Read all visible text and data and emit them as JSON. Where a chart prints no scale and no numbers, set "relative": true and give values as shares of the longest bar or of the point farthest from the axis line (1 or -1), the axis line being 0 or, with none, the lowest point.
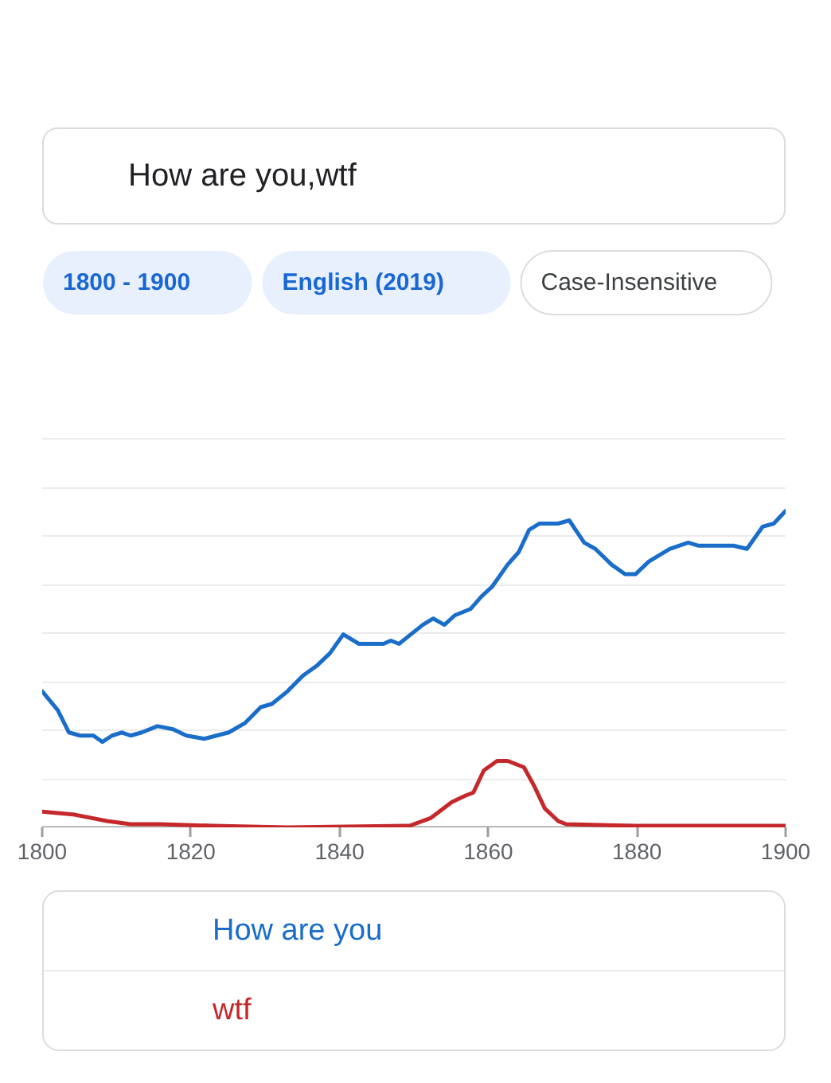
{
  "chart_data": {
    "type": "line",
    "title": "How are you,wtf",
    "annotations": [
      "1800 - 1900",
      "English (2019)",
      "Case-Insensitive"
    ],
    "relative": true,
    "xlim": [
      1800,
      1900
    ],
    "xticks": [
      1800,
      1820,
      1840,
      1860,
      1880,
      1900
    ],
    "grid": "y",
    "legend": "bottom",
    "tick_labels": "x",
    "series": [
      {
        "name": "How are you",
        "color": "#1a6dc9",
        "x": [
          1800,
          1802.1,
          1803.6,
          1805.1,
          1806.9,
          1808.1,
          1809.4,
          1810.7,
          1811.9,
          1813.4,
          1815.5,
          1817.6,
          1819.4,
          1821.8,
          1825.1,
          1827.3,
          1829.4,
          1830.9,
          1833,
          1835.1,
          1836.9,
          1838.7,
          1840.5,
          1842.6,
          1845.9,
          1846.9,
          1848,
          1851.2,
          1852.6,
          1854.1,
          1855.5,
          1857.6,
          1859.1,
          1860.5,
          1862.6,
          1864.1,
          1865.5,
          1866.9,
          1869.4,
          1870.9,
          1872.9,
          1874.4,
          1876.6,
          1878.4,
          1879.8,
          1881.6,
          1884.4,
          1886.9,
          1888.3,
          1891.2,
          1893,
          1894.8,
          1896.9,
          1898.4,
          1900
        ],
        "values": [
          0.43,
          0.37,
          0.3,
          0.29,
          0.29,
          0.27,
          0.29,
          0.3,
          0.29,
          0.3,
          0.32,
          0.31,
          0.29,
          0.28,
          0.3,
          0.33,
          0.38,
          0.39,
          0.43,
          0.48,
          0.51,
          0.55,
          0.61,
          0.58,
          0.58,
          0.59,
          0.58,
          0.64,
          0.66,
          0.64,
          0.67,
          0.69,
          0.73,
          0.76,
          0.83,
          0.87,
          0.94,
          0.96,
          0.96,
          0.97,
          0.9,
          0.88,
          0.83,
          0.8,
          0.8,
          0.84,
          0.88,
          0.9,
          0.89,
          0.89,
          0.89,
          0.88,
          0.95,
          0.96,
          1
        ]
      },
      {
        "name": "wtf",
        "color": "#c5282a",
        "x": [
          1800,
          1804.4,
          1808.7,
          1811.9,
          1815.9,
          1823,
          1833,
          1849.4,
          1852.3,
          1855.1,
          1856.9,
          1858,
          1859.4,
          1861.2,
          1862.6,
          1864.8,
          1866.2,
          1867.6,
          1869.4,
          1870.5,
          1880,
          1890,
          1900
        ],
        "values": [
          0.05,
          0.04,
          0.02,
          0.01,
          0.01,
          0.005,
          0,
          0.005,
          0.03,
          0.08,
          0.1,
          0.11,
          0.18,
          0.21,
          0.21,
          0.19,
          0.13,
          0.06,
          0.02,
          0.01,
          0.005,
          0.005,
          0.005
        ]
      }
    ]
  }
}
